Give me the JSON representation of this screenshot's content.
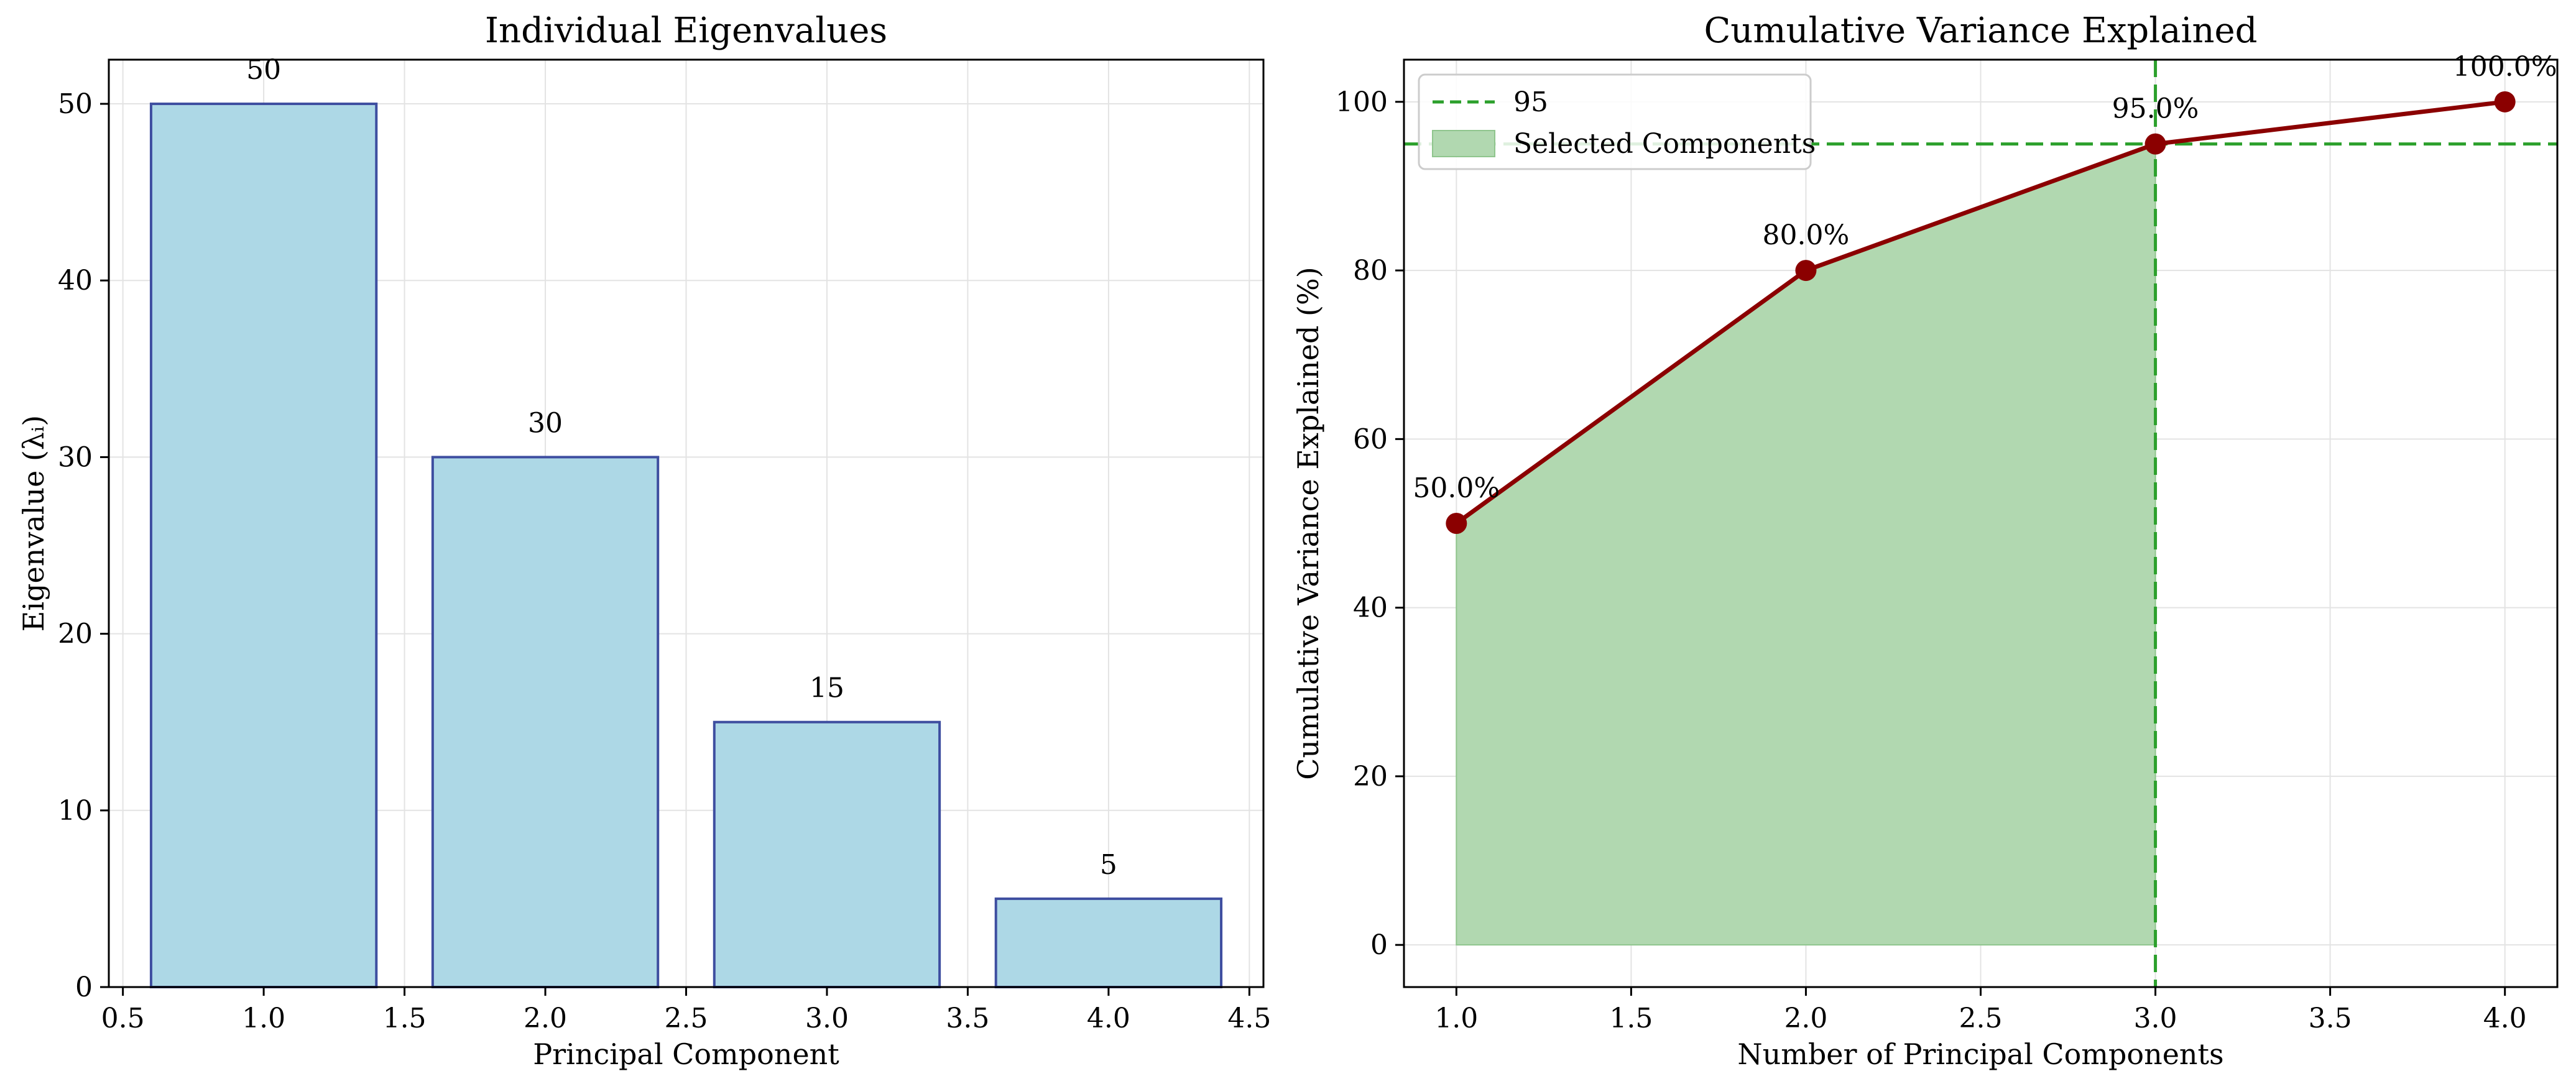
{
  "chart_data": [
    {
      "type": "bar",
      "title": "Individual Eigenvalues",
      "xlabel": "Principal Component",
      "ylabel": "Eigenvalue (λᵢ)",
      "x": [
        1,
        2,
        3,
        4
      ],
      "values": [
        50,
        30,
        15,
        5
      ],
      "data_labels": [
        "50",
        "30",
        "15",
        "5"
      ],
      "xlim": [
        0.45,
        4.55
      ],
      "ylim": [
        0,
        52.5
      ],
      "xticks": [
        0.5,
        1.0,
        1.5,
        2.0,
        2.5,
        3.0,
        3.5,
        4.0,
        4.5
      ],
      "xtick_labels": [
        "0.5",
        "1.0",
        "1.5",
        "2.0",
        "2.5",
        "3.0",
        "3.5",
        "4.0",
        "4.5"
      ],
      "yticks": [
        0,
        10,
        20,
        30,
        40,
        50
      ],
      "ytick_labels": [
        "0",
        "10",
        "20",
        "30",
        "40",
        "50"
      ],
      "bar_width": 0.8,
      "grid": true,
      "colors": {
        "fill": "#add8e6",
        "edge": "#3e4ea0"
      }
    },
    {
      "type": "line",
      "title": "Cumulative Variance Explained",
      "xlabel": "Number of Principal Components",
      "ylabel": "Cumulative Variance Explained (%)",
      "x": [
        1,
        2,
        3,
        4
      ],
      "values": [
        50,
        80,
        95,
        100
      ],
      "data_labels": [
        "50.0%",
        "80.0%",
        "95.0%",
        "100.0%"
      ],
      "xlim": [
        0.85,
        4.15
      ],
      "ylim": [
        -5,
        105
      ],
      "xticks": [
        1.0,
        1.5,
        2.0,
        2.5,
        3.0,
        3.5,
        4.0
      ],
      "xtick_labels": [
        "1.0",
        "1.5",
        "2.0",
        "2.5",
        "3.0",
        "3.5",
        "4.0"
      ],
      "yticks": [
        0,
        20,
        40,
        60,
        80,
        100
      ],
      "ytick_labels": [
        "0",
        "20",
        "40",
        "60",
        "80",
        "100"
      ],
      "threshold": 95,
      "threshold_x": 3,
      "shaded_range": [
        1,
        3
      ],
      "legend": {
        "placement": "upper-left",
        "entries": [
          "95",
          "Selected Components"
        ]
      },
      "grid": true,
      "colors": {
        "line": "#8b0000",
        "threshold": "#2ca02c",
        "fill": "#b1d8b0"
      }
    }
  ]
}
